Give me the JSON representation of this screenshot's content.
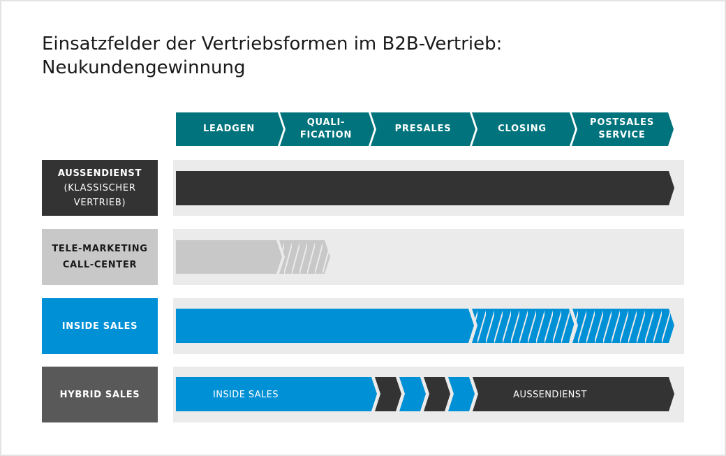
{
  "title": {
    "line1": "Einsatzfelder der Vertriebsformen im B2B-Vertrieb:",
    "line2": "Neukundengewinnung"
  },
  "colors": {
    "teal": "#00737d",
    "dark": "#333333",
    "light_gray": "#c8c8c8",
    "blue": "#0090d6",
    "mid_gray": "#595959",
    "lane": "#ebebeb",
    "white": "#ffffff"
  },
  "phases": [
    {
      "line1": "LEADGEN",
      "line2": ""
    },
    {
      "line1": "QUALI-",
      "line2": "FICATION"
    },
    {
      "line1": "PRESALES",
      "line2": ""
    },
    {
      "line1": "CLOSING",
      "line2": ""
    },
    {
      "line1": "POSTSALES",
      "line2": "SERVICE"
    }
  ],
  "rows": [
    {
      "name": "AUSSENDIENST",
      "sub1": "(KLASSISCHER",
      "sub2": "VERTRIEB)",
      "coverage": {
        "solid": [
          "LEADGEN",
          "QUALI-FICATION",
          "PRESALES",
          "CLOSING",
          "POSTSALES SERVICE"
        ],
        "partial": []
      }
    },
    {
      "name": "TELE-MARKETING",
      "sub1": "CALL-CENTER",
      "sub2": "",
      "coverage": {
        "solid": [
          "LEADGEN"
        ],
        "partial": [
          "QUALI-FICATION"
        ]
      }
    },
    {
      "name": "INSIDE SALES",
      "sub1": "",
      "sub2": "",
      "coverage": {
        "solid": [
          "LEADGEN",
          "QUALI-FICATION",
          "PRESALES"
        ],
        "partial": [
          "CLOSING",
          "POSTSALES SERVICE"
        ]
      }
    },
    {
      "name": "HYBRID SALES",
      "sub1": "",
      "sub2": "",
      "segments": {
        "left_label": "INSIDE SALES",
        "right_label": "AUSSENDIENST"
      }
    }
  ]
}
